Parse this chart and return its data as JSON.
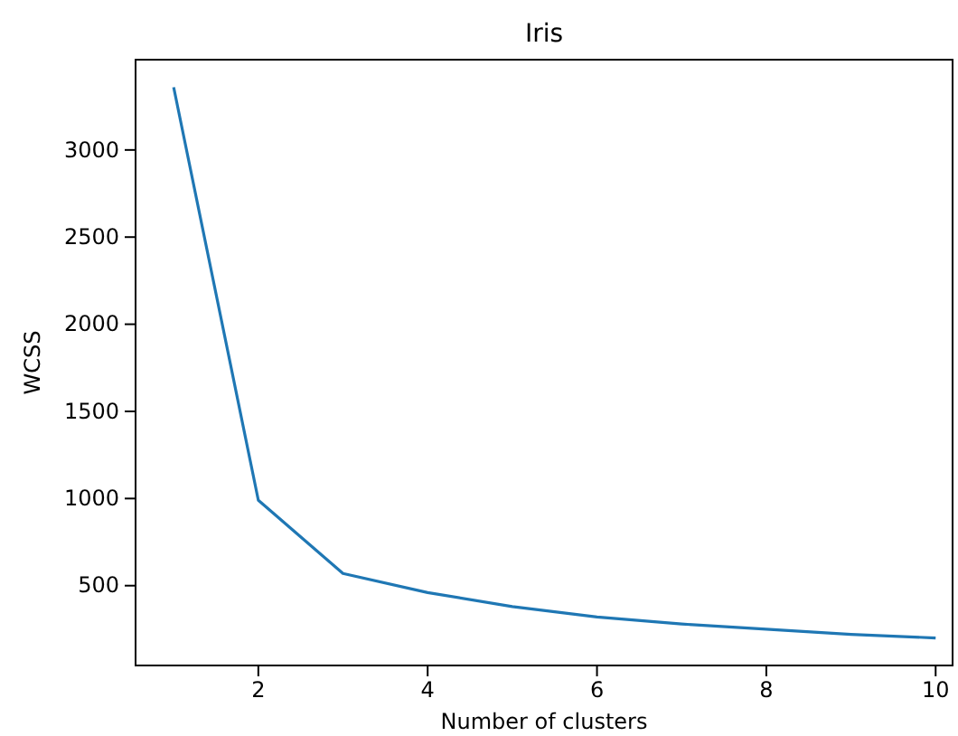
{
  "chart_data": {
    "type": "line",
    "title": "Iris",
    "xlabel": "Number of clusters",
    "ylabel": "WCSS",
    "x": [
      1,
      2,
      3,
      4,
      5,
      6,
      7,
      8,
      9,
      10
    ],
    "series": [
      {
        "color": "#1f77b4",
        "values": [
          3360,
          990,
          570,
          460,
          380,
          320,
          280,
          250,
          220,
          200
        ]
      }
    ],
    "xlim": [
      0.55,
      10.2
    ],
    "xticks": [
      2,
      4,
      6,
      8,
      10
    ],
    "ylim": [
      42,
      3518
    ],
    "yticks": [
      500,
      1000,
      1500,
      2000,
      2500,
      3000
    ],
    "grid": false,
    "marker": "none",
    "line_style": "solid"
  }
}
